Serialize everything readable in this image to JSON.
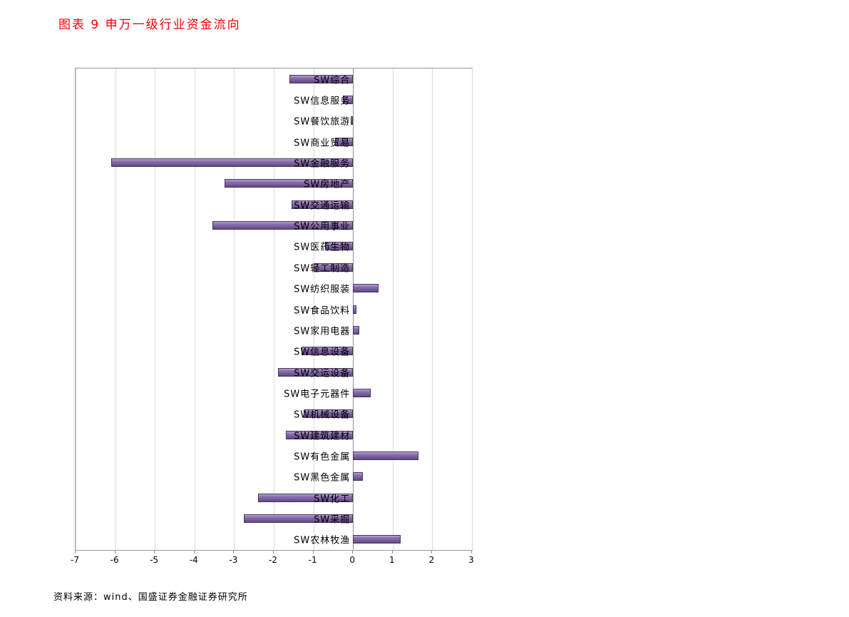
{
  "title": "图表 9 申万一级行业资金流向",
  "source": "资料来源：wind、国盛证券金融证券研究所",
  "colors": {
    "title": "#ff0000",
    "bar_fill": "#8064a2",
    "bar_border": "#44355e",
    "gridline": "#d9d9d9"
  },
  "chart_data": {
    "type": "bar",
    "orientation": "horizontal",
    "title": "图表 9 申万一级行业资金流向",
    "xlabel": "",
    "ylabel": "",
    "xlim": [
      -7,
      3
    ],
    "xticks": [
      -7,
      -6,
      -5,
      -4,
      -3,
      -2,
      -1,
      0,
      1,
      2,
      3
    ],
    "grid": true,
    "legend": false,
    "categories": [
      "SW综合",
      "SW信息服务",
      "SW餐饮旅游",
      "SW商业贸易",
      "SW金融服务",
      "SW房地产",
      "SW交通运输",
      "SW公用事业",
      "SW医药生物",
      "SW轻工制造",
      "SW纺织服装",
      "SW食品饮料",
      "SW家用电器",
      "SW信息设备",
      "SW交运设备",
      "SW电子元器件",
      "SW机械设备",
      "SW建筑建材",
      "SW有色金属",
      "SW黑色金属",
      "SW化工",
      "SW采掘",
      "SW农林牧渔"
    ],
    "values": [
      -1.6,
      -0.25,
      -0.05,
      -0.45,
      -6.1,
      -3.25,
      -1.55,
      -3.55,
      -0.7,
      -1.0,
      0.65,
      0.08,
      0.15,
      -1.3,
      -1.9,
      0.45,
      -1.25,
      -1.7,
      1.65,
      0.25,
      -2.4,
      -2.75,
      1.2
    ]
  }
}
